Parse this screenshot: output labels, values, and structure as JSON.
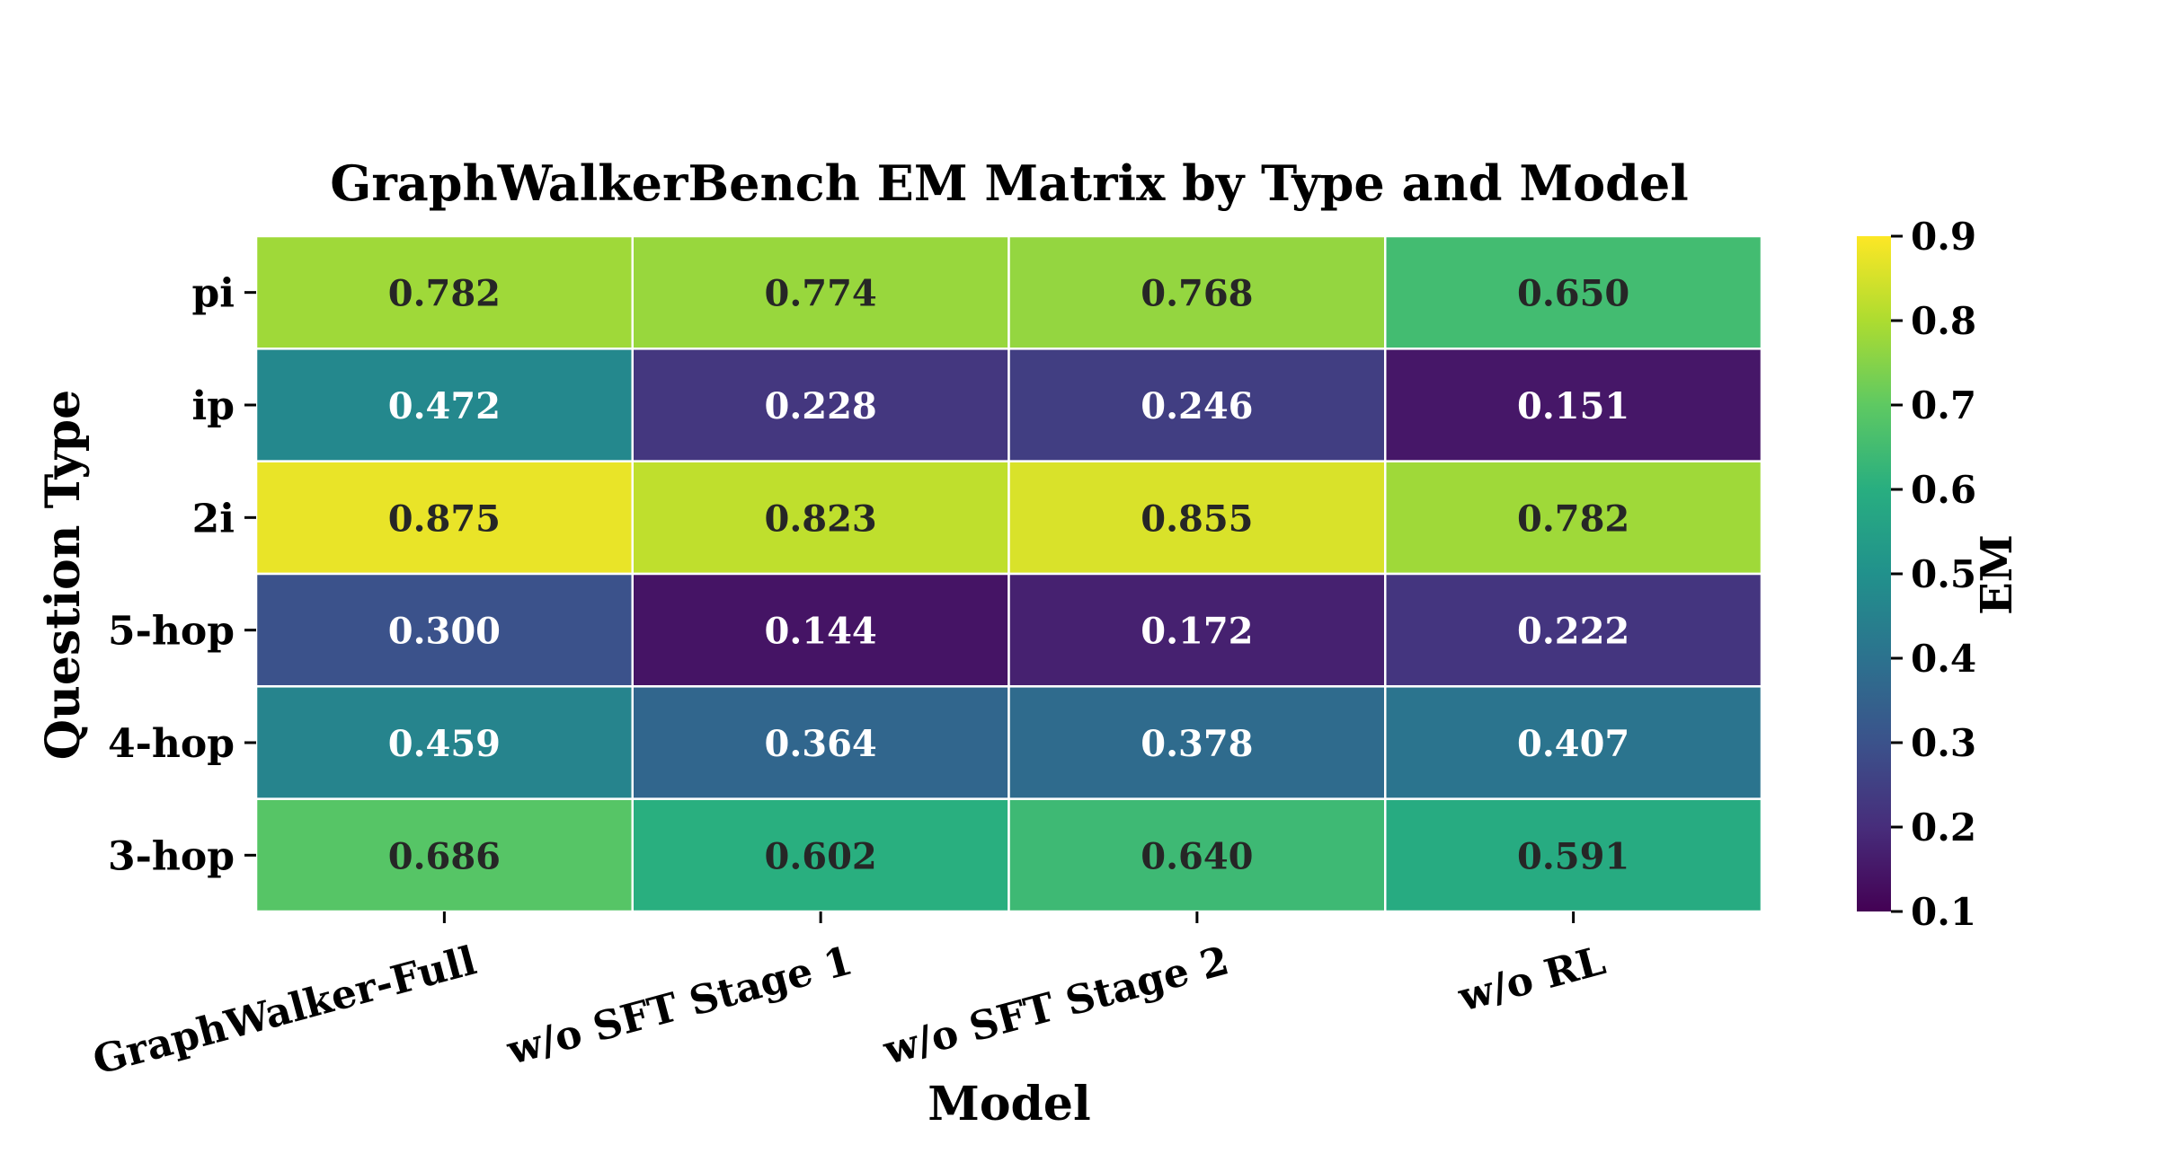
{
  "chart_data": {
    "type": "heatmap",
    "title": "GraphWalkerBench EM Matrix by Type and Model",
    "xlabel": "Model",
    "ylabel": "Question Type",
    "x_categories": [
      "GraphWalker-Full",
      "w/o SFT Stage 1",
      "w/o SFT Stage 2",
      "w/o RL"
    ],
    "y_categories": [
      "pi",
      "ip",
      "2i",
      "5-hop",
      "4-hop",
      "3-hop"
    ],
    "values": [
      [
        0.782,
        0.774,
        0.768,
        0.65
      ],
      [
        0.472,
        0.228,
        0.246,
        0.151
      ],
      [
        0.875,
        0.823,
        0.855,
        0.782
      ],
      [
        0.3,
        0.144,
        0.172,
        0.222
      ],
      [
        0.459,
        0.364,
        0.378,
        0.407
      ],
      [
        0.686,
        0.602,
        0.64,
        0.591
      ]
    ],
    "value_format": "0.000",
    "colormap": "viridis",
    "vmin": 0.1,
    "vmax": 0.9,
    "colorbar": {
      "label": "EM",
      "ticks": [
        0.1,
        0.2,
        0.3,
        0.4,
        0.5,
        0.6,
        0.7,
        0.8,
        0.9
      ],
      "tick_labels": [
        "0.1",
        "0.2",
        "0.3",
        "0.4",
        "0.5",
        "0.6",
        "0.7",
        "0.8",
        "0.9"
      ]
    },
    "cell_border_color": "#ffffff",
    "annotation_dark_color": "#262626",
    "annotation_light_color": "#ffffff",
    "legend": "colorbar-right"
  }
}
